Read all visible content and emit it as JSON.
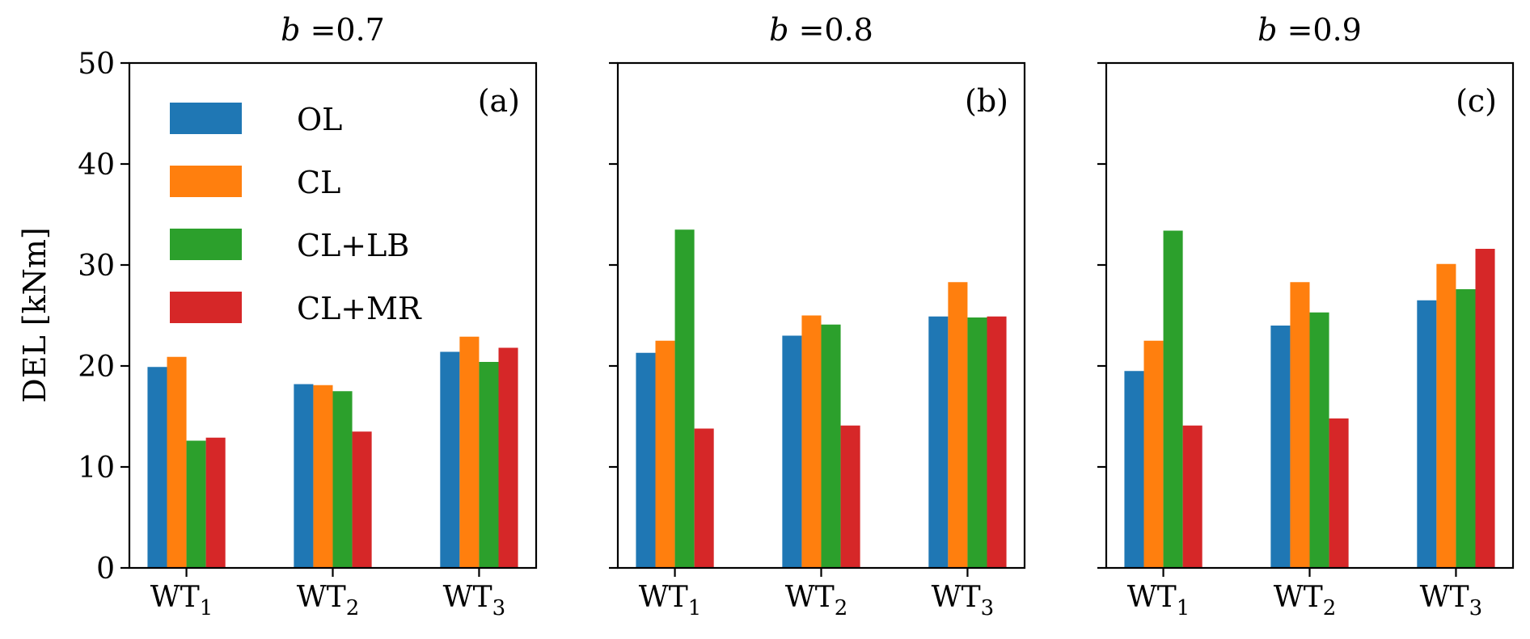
{
  "chart_data": {
    "type": "bar",
    "ylabel": "DEL [kNm]",
    "ylim": [
      0,
      50
    ],
    "yticks": [
      "0",
      "10",
      "20",
      "30",
      "40",
      "50"
    ],
    "ytick_values": [
      0,
      10,
      20,
      30,
      40,
      50
    ],
    "categories": [
      "WT",
      "WT",
      "WT"
    ],
    "category_subscripts": [
      "1",
      "2",
      "3"
    ],
    "legend": {
      "placement": "upper-left of first panel",
      "entries": [
        {
          "name": "OL",
          "color": "#1f77b4"
        },
        {
          "name": "CL",
          "color": "#ff7f0e"
        },
        {
          "name": "CL+LB",
          "color": "#2ca02c"
        },
        {
          "name": "CL+MR",
          "color": "#d62728"
        }
      ]
    },
    "panels": [
      {
        "title_var": "b",
        "title_eq": " =0.7",
        "tag": "(a)",
        "series": [
          {
            "name": "OL",
            "values": [
              19.9,
              18.2,
              21.4
            ]
          },
          {
            "name": "CL",
            "values": [
              20.9,
              18.1,
              22.9
            ]
          },
          {
            "name": "CL+LB",
            "values": [
              12.6,
              17.5,
              20.4
            ]
          },
          {
            "name": "CL+MR",
            "values": [
              12.9,
              13.5,
              21.8
            ]
          }
        ]
      },
      {
        "title_var": "b",
        "title_eq": " =0.8",
        "tag": "(b)",
        "series": [
          {
            "name": "OL",
            "values": [
              21.3,
              23.0,
              24.9
            ]
          },
          {
            "name": "CL",
            "values": [
              22.5,
              25.0,
              28.3
            ]
          },
          {
            "name": "CL+LB",
            "values": [
              33.5,
              24.1,
              24.8
            ]
          },
          {
            "name": "CL+MR",
            "values": [
              13.8,
              14.1,
              24.9
            ]
          }
        ]
      },
      {
        "title_var": "b",
        "title_eq": " =0.9",
        "tag": "(c)",
        "series": [
          {
            "name": "OL",
            "values": [
              19.5,
              24.0,
              26.5
            ]
          },
          {
            "name": "CL",
            "values": [
              22.5,
              28.3,
              30.1
            ]
          },
          {
            "name": "CL+LB",
            "values": [
              33.4,
              25.3,
              27.6
            ]
          },
          {
            "name": "CL+MR",
            "values": [
              14.1,
              14.8,
              31.6
            ]
          }
        ]
      }
    ]
  }
}
